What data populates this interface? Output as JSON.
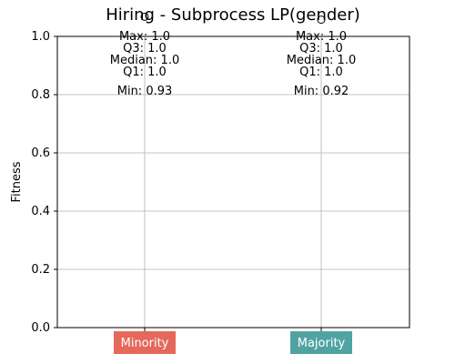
{
  "chart_data": {
    "type": "box",
    "title": "Hiring - Subprocess LP(gender)",
    "xlabel": "",
    "ylabel": "Fitness",
    "ylim": [
      0.0,
      1.0
    ],
    "yticks": [
      "0.0",
      "0.2",
      "0.4",
      "0.6",
      "0.8",
      "1.0"
    ],
    "grid": true,
    "categories": [
      {
        "name": "Minority",
        "color": "#e4695a",
        "stats": {
          "min": 0.93,
          "q1": 1.0,
          "median": 1.0,
          "q3": 1.0,
          "max": 1.0,
          "outlier": 0.93
        },
        "labels": {
          "max": "Max: 1.0",
          "q3": "Q3: 1.0",
          "median": "Median: 1.0",
          "q1": "Q1: 1.0",
          "min": "Min: 0.93"
        }
      },
      {
        "name": "Majority",
        "color": "#51a3a3",
        "stats": {
          "min": 0.92,
          "q1": 1.0,
          "median": 1.0,
          "q3": 1.0,
          "max": 1.0,
          "outlier": 0.92
        },
        "labels": {
          "max": "Max: 1.0",
          "q3": "Q3: 1.0",
          "median": "Median: 1.0",
          "q1": "Q1: 1.0",
          "min": "Min: 0.92"
        }
      }
    ]
  }
}
